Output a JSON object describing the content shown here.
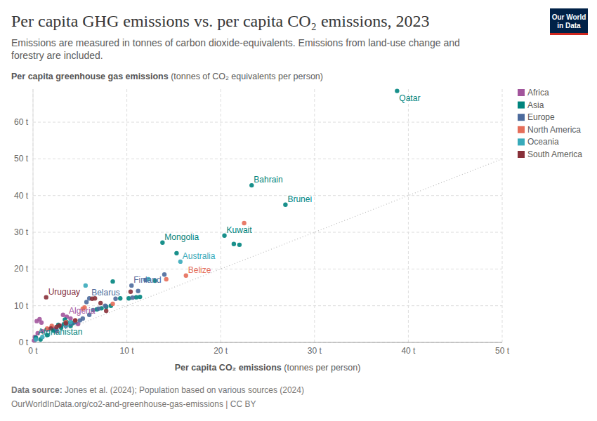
{
  "chart_data": {
    "type": "scatter",
    "title": "Per capita GHG emissions vs. per capita CO₂ emissions, 2023",
    "subtitle": [
      "Emissions are measured in tonnes of carbon dioxide-equivalents. Emissions from land-use change and",
      "forestry are included."
    ],
    "ylabel": "Per capita greenhouse gas emissions",
    "ylabel_unit": "(tonnes of CO₂ equivalents per person)",
    "xlabel": "Per capita CO₂ emissions",
    "xlabel_unit": "(tonnes per person)",
    "source_label": "Data source:",
    "source": "Jones et al. (2024); Population based on various sources (2024)",
    "footer_url": "OurWorldInData.org/co2-and-greenhouse-gas-emissions | CC BY",
    "logo": [
      "Our World",
      "in Data"
    ],
    "xlim": [
      0,
      50
    ],
    "ylim": [
      0,
      69
    ],
    "xticks": [
      {
        "value": 0,
        "label": "0 t"
      },
      {
        "value": 10,
        "label": "10 t"
      },
      {
        "value": 20,
        "label": "20 t"
      },
      {
        "value": 30,
        "label": "30 t"
      },
      {
        "value": 40,
        "label": "40 t"
      },
      {
        "value": 50,
        "label": "50 t"
      }
    ],
    "yticks": [
      {
        "value": 0,
        "label": "0 t"
      },
      {
        "value": 10,
        "label": "10 t"
      },
      {
        "value": 20,
        "label": "20 t"
      },
      {
        "value": 30,
        "label": "30 t"
      },
      {
        "value": 40,
        "label": "40 t"
      },
      {
        "value": 50,
        "label": "50 t"
      },
      {
        "value": 60,
        "label": "60 t"
      }
    ],
    "grid": true,
    "legend": "right",
    "marker": "circle",
    "series": [
      {
        "name": "Africa",
        "color": "#a2559c",
        "x": [
          3.6,
          0.4,
          0.7,
          0.9,
          0.2,
          0.5,
          1.0,
          1.5,
          2.0,
          2.5,
          3.0,
          3.2,
          4.0,
          4.8,
          0.1,
          0.3,
          4.4,
          2.2
        ],
        "values": [
          7.0,
          5.8,
          6.3,
          5.4,
          1.5,
          2.5,
          3.0,
          3.5,
          4.0,
          3.0,
          4.5,
          7.5,
          6.5,
          5.0,
          0.5,
          1.0,
          5.5,
          3.6
        ]
      },
      {
        "name": "Asia",
        "color": "#00847e",
        "x": [
          38.8,
          23.3,
          26.9,
          20.4,
          13.8,
          21.4,
          22.0,
          15.3,
          8.5,
          13.0,
          9.3,
          10.2,
          11.0,
          11.4,
          7.8,
          8.3,
          0.3,
          0.8,
          1.5,
          2.2,
          3.0,
          3.3,
          3.6,
          4.0,
          4.5,
          2.7,
          3.4,
          4.2,
          6.8,
          7.3
        ],
        "values": [
          68.5,
          42.8,
          37.5,
          29.1,
          27.2,
          26.8,
          26.6,
          24.3,
          16.6,
          16.8,
          12.0,
          12.0,
          12.3,
          12.4,
          9.7,
          10.0,
          1.3,
          0.8,
          2.0,
          3.2,
          4.0,
          5.0,
          5.5,
          4.5,
          5.8,
          4.8,
          6.2,
          5.2,
          9.0,
          9.3
        ]
      },
      {
        "name": "Europe",
        "color": "#4c6a9c",
        "x": [
          10.5,
          6.0,
          14.0,
          12.0,
          10.6,
          11.2,
          6.4,
          7.0,
          7.7,
          8.8,
          5.7,
          4.5,
          5.0,
          5.3,
          4.0,
          3.5,
          6.0,
          2.5
        ],
        "values": [
          15.5,
          12.0,
          18.5,
          17.0,
          12.2,
          14.0,
          8.8,
          9.2,
          10.0,
          11.9,
          11.0,
          5.5,
          6.0,
          6.5,
          5.0,
          4.5,
          7.5,
          3.5
        ]
      },
      {
        "name": "North America",
        "color": "#e56e5a",
        "x": [
          16.3,
          22.5,
          14.2,
          5.5,
          3.5,
          4.5,
          8.5,
          2.0,
          1.5,
          5.3
        ],
        "values": [
          18.2,
          32.5,
          17.2,
          9.5,
          5.5,
          6.0,
          10.5,
          4.5,
          3.8,
          9.2
        ]
      },
      {
        "name": "Oceania",
        "color": "#38aaba",
        "x": [
          15.7,
          5.6,
          4.0,
          3.5,
          0.3,
          1.0,
          12.3
        ],
        "values": [
          22.0,
          15.5,
          5.5,
          4.8,
          0.8,
          1.5,
          17.2
        ]
      },
      {
        "name": "South America",
        "color": "#883039",
        "x": [
          1.4,
          6.3,
          7.2,
          7.8,
          10.4,
          2.5,
          2.8,
          1.9,
          3.5,
          4.5,
          6.6
        ],
        "values": [
          12.3,
          11.9,
          10.7,
          8.6,
          13.8,
          4.2,
          4.6,
          3.8,
          5.2,
          6.0,
          12.0
        ]
      }
    ],
    "point_labels": [
      {
        "text": "Qatar",
        "series": 1,
        "index": 0
      },
      {
        "text": "Bahrain",
        "series": 1,
        "index": 1
      },
      {
        "text": "Brunei",
        "series": 1,
        "index": 2
      },
      {
        "text": "Kuwait",
        "series": 1,
        "index": 3
      },
      {
        "text": "Mongolia",
        "series": 1,
        "index": 4
      },
      {
        "text": "Australia",
        "series": 4,
        "index": 0
      },
      {
        "text": "Belize",
        "series": 3,
        "index": 0
      },
      {
        "text": "Finland",
        "series": 2,
        "index": 0
      },
      {
        "text": "Uruguay",
        "series": 5,
        "index": 0
      },
      {
        "text": "Belarus",
        "series": 2,
        "index": 1
      },
      {
        "text": "Algeria",
        "series": 0,
        "index": 0
      },
      {
        "text": "Afghanistan",
        "series": 1,
        "index": 16
      }
    ]
  }
}
